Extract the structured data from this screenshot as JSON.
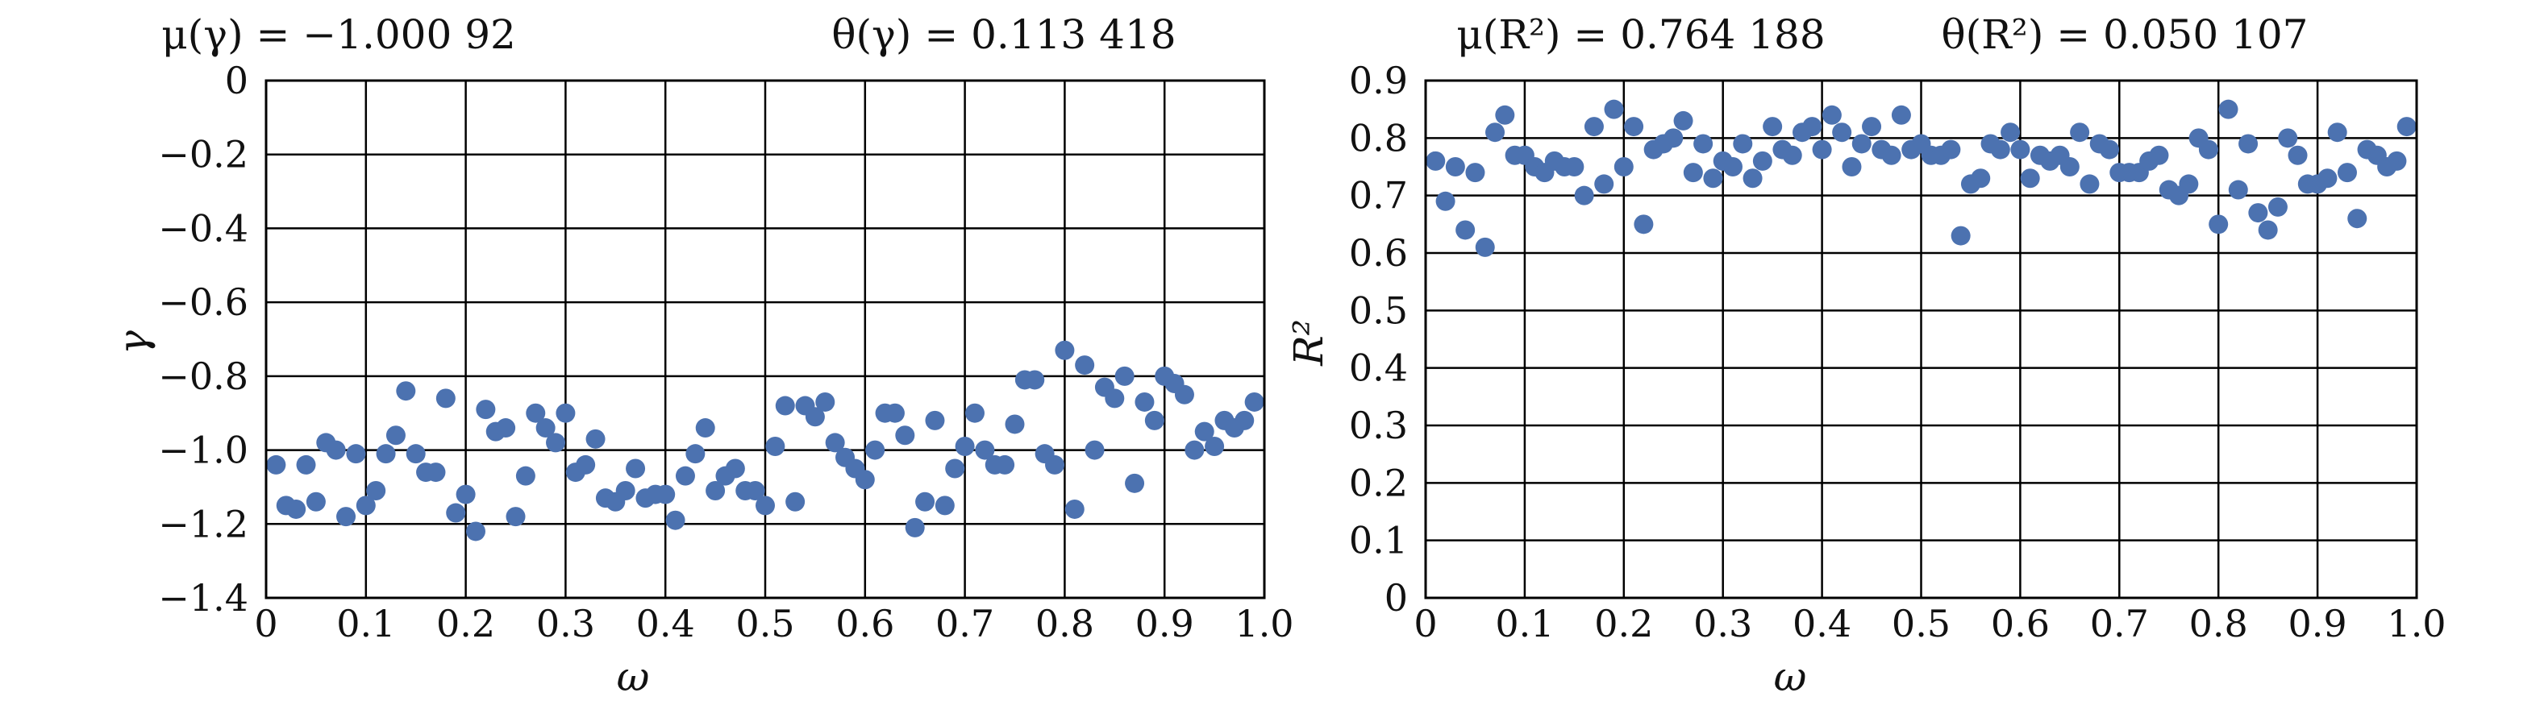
{
  "chart_data": [
    {
      "type": "scatter",
      "title_left": "μ(γ) = −1.000 92",
      "title_right": "θ(γ) = 0.113 418",
      "xlabel": "ω",
      "ylabel": "γ",
      "xlim": [
        0,
        1.0
      ],
      "ylim": [
        -1.4,
        0
      ],
      "xticks": [
        0,
        0.1,
        0.2,
        0.3,
        0.4,
        0.5,
        0.6,
        0.7,
        0.8,
        0.9,
        1.0
      ],
      "xtick_labels": [
        "0",
        "0.1",
        "0.2",
        "0.3",
        "0.4",
        "0.5",
        "0.6",
        "0.7",
        "0.8",
        "0.9",
        "1.0"
      ],
      "yticks": [
        0,
        -0.2,
        -0.4,
        -0.6,
        -0.8,
        -1.0,
        -1.2,
        -1.4
      ],
      "ytick_labels": [
        "0",
        "−0.2",
        "−0.4",
        "−0.6",
        "−0.8",
        "−1.0",
        "−1.2",
        "−1.4"
      ],
      "grid": true,
      "point_color": "#4c72b0",
      "series": [
        {
          "x": [
            0.01,
            0.02,
            0.03,
            0.04,
            0.05,
            0.06,
            0.07,
            0.08,
            0.09,
            0.1,
            0.11,
            0.12,
            0.13,
            0.14,
            0.15,
            0.16,
            0.17,
            0.18,
            0.19,
            0.2,
            0.21,
            0.22,
            0.23,
            0.24,
            0.25,
            0.26,
            0.27,
            0.28,
            0.29,
            0.3,
            0.31,
            0.32,
            0.33,
            0.34,
            0.35,
            0.36,
            0.37,
            0.38,
            0.39,
            0.4,
            0.41,
            0.42,
            0.43,
            0.44,
            0.45,
            0.46,
            0.47,
            0.48,
            0.49,
            0.5,
            0.51,
            0.52,
            0.53,
            0.54,
            0.55,
            0.56,
            0.57,
            0.58,
            0.59,
            0.6,
            0.61,
            0.62,
            0.63,
            0.64,
            0.65,
            0.66,
            0.67,
            0.68,
            0.69,
            0.7,
            0.71,
            0.72,
            0.73,
            0.74,
            0.75,
            0.76,
            0.77,
            0.78,
            0.79,
            0.8,
            0.81,
            0.82,
            0.83,
            0.84,
            0.85,
            0.86,
            0.87,
            0.88,
            0.89,
            0.9,
            0.91,
            0.92,
            0.93,
            0.94,
            0.95,
            0.96,
            0.97,
            0.98,
            0.99
          ],
          "y": [
            -1.04,
            -1.15,
            -1.16,
            -1.04,
            -1.14,
            -0.98,
            -1.0,
            -1.18,
            -1.01,
            -1.15,
            -1.11,
            -1.01,
            -0.96,
            -0.84,
            -1.01,
            -1.06,
            -1.06,
            -0.86,
            -1.17,
            -1.12,
            -1.22,
            -0.89,
            -0.95,
            -0.94,
            -1.18,
            -1.07,
            -0.9,
            -0.94,
            -0.98,
            -0.9,
            -1.06,
            -1.04,
            -0.97,
            -1.13,
            -1.14,
            -1.11,
            -1.05,
            -1.13,
            -1.12,
            -1.12,
            -1.19,
            -1.07,
            -1.01,
            -0.94,
            -1.11,
            -1.07,
            -1.05,
            -1.11,
            -1.11,
            -1.15,
            -0.99,
            -0.88,
            -1.14,
            -0.88,
            -0.91,
            -0.87,
            -0.98,
            -1.02,
            -1.05,
            -1.08,
            -1.0,
            -0.9,
            -0.9,
            -0.96,
            -1.21,
            -1.14,
            -0.92,
            -1.15,
            -1.05,
            -0.99,
            -0.9,
            -1.0,
            -1.04,
            -1.04,
            -0.93,
            -0.81,
            -0.81,
            -1.01,
            -1.04,
            -0.73,
            -1.16,
            -0.77,
            -1.0,
            -0.83,
            -0.86,
            -0.8,
            -1.09,
            -0.87,
            -0.92,
            -0.8,
            -0.82,
            -0.85,
            -1.0,
            -0.95,
            -0.99,
            -0.92,
            -0.94,
            -0.92,
            -0.87
          ]
        }
      ]
    },
    {
      "type": "scatter",
      "title_left": "μ(R²) = 0.764 188",
      "title_right": "θ(R²) = 0.050 107",
      "xlabel": "ω",
      "ylabel": "R²",
      "xlim": [
        0,
        1.0
      ],
      "ylim": [
        0,
        0.9
      ],
      "xticks": [
        0,
        0.1,
        0.2,
        0.3,
        0.4,
        0.5,
        0.6,
        0.7,
        0.8,
        0.9,
        1.0
      ],
      "xtick_labels": [
        "0",
        "0.1",
        "0.2",
        "0.3",
        "0.4",
        "0.5",
        "0.6",
        "0.7",
        "0.8",
        "0.9",
        "1.0"
      ],
      "yticks": [
        0,
        0.1,
        0.2,
        0.3,
        0.4,
        0.5,
        0.6,
        0.7,
        0.8,
        0.9
      ],
      "ytick_labels": [
        "0",
        "0.1",
        "0.2",
        "0.3",
        "0.4",
        "0.5",
        "0.6",
        "0.7",
        "0.8",
        "0.9"
      ],
      "grid": true,
      "point_color": "#4c72b0",
      "series": [
        {
          "x": [
            0.01,
            0.02,
            0.03,
            0.04,
            0.05,
            0.06,
            0.07,
            0.08,
            0.09,
            0.1,
            0.11,
            0.12,
            0.13,
            0.14,
            0.15,
            0.16,
            0.17,
            0.18,
            0.19,
            0.2,
            0.21,
            0.22,
            0.23,
            0.24,
            0.25,
            0.26,
            0.27,
            0.28,
            0.29,
            0.3,
            0.31,
            0.32,
            0.33,
            0.34,
            0.35,
            0.36,
            0.37,
            0.38,
            0.39,
            0.4,
            0.41,
            0.42,
            0.43,
            0.44,
            0.45,
            0.46,
            0.47,
            0.48,
            0.49,
            0.5,
            0.51,
            0.52,
            0.53,
            0.54,
            0.55,
            0.56,
            0.57,
            0.58,
            0.59,
            0.6,
            0.61,
            0.62,
            0.63,
            0.64,
            0.65,
            0.66,
            0.67,
            0.68,
            0.69,
            0.7,
            0.71,
            0.72,
            0.73,
            0.74,
            0.75,
            0.76,
            0.77,
            0.78,
            0.79,
            0.8,
            0.81,
            0.82,
            0.83,
            0.84,
            0.85,
            0.86,
            0.87,
            0.88,
            0.89,
            0.9,
            0.91,
            0.92,
            0.93,
            0.94,
            0.95,
            0.96,
            0.97,
            0.98,
            0.99
          ],
          "y": [
            0.76,
            0.69,
            0.75,
            0.64,
            0.74,
            0.61,
            0.81,
            0.84,
            0.77,
            0.77,
            0.75,
            0.74,
            0.76,
            0.75,
            0.75,
            0.7,
            0.82,
            0.72,
            0.85,
            0.75,
            0.82,
            0.65,
            0.78,
            0.79,
            0.8,
            0.83,
            0.74,
            0.79,
            0.73,
            0.76,
            0.75,
            0.79,
            0.73,
            0.76,
            0.82,
            0.78,
            0.77,
            0.81,
            0.82,
            0.78,
            0.84,
            0.81,
            0.75,
            0.79,
            0.82,
            0.78,
            0.77,
            0.84,
            0.78,
            0.79,
            0.77,
            0.77,
            0.78,
            0.63,
            0.72,
            0.73,
            0.79,
            0.78,
            0.81,
            0.78,
            0.73,
            0.77,
            0.76,
            0.77,
            0.75,
            0.81,
            0.72,
            0.79,
            0.78,
            0.74,
            0.74,
            0.74,
            0.76,
            0.77,
            0.71,
            0.7,
            0.72,
            0.8,
            0.78,
            0.65,
            0.85,
            0.71,
            0.79,
            0.67,
            0.64,
            0.68,
            0.8,
            0.77,
            0.72,
            0.72,
            0.73,
            0.81,
            0.74,
            0.66,
            0.78,
            0.77,
            0.75,
            0.76,
            0.82
          ]
        }
      ]
    }
  ]
}
